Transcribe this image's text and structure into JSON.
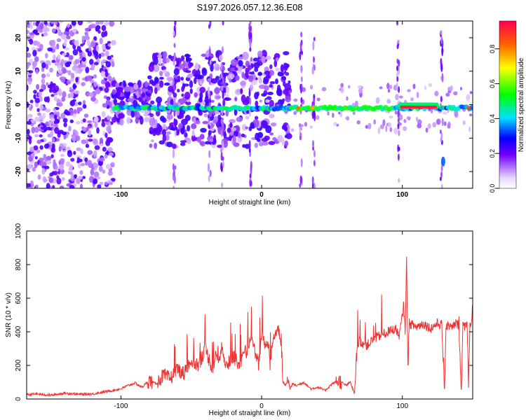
{
  "figure_title": "S197.2026.057.12.36.E08",
  "chart_data": [
    {
      "type": "heatmap",
      "title": "S197.2026.057.12.36.E08",
      "xlabel": "Height of straight line (km)",
      "ylabel": "Frequency (Hz)",
      "xlim": [
        -167,
        150
      ],
      "ylim": [
        -25,
        25
      ],
      "x_ticks": [
        -100,
        0,
        100
      ],
      "x_tick_labels": [
        "-100",
        "0",
        "100"
      ],
      "y_ticks": [
        -20,
        -10,
        0,
        10,
        20
      ],
      "y_tick_labels": [
        "-20",
        "-10",
        "0",
        "10",
        "20"
      ],
      "colorbar": {
        "label": "Normalized spectral amplitude",
        "range": [
          0,
          0.96
        ],
        "ticks": [
          0,
          0.2,
          0.4,
          0.6,
          0.8
        ],
        "tick_labels": [
          "0.0",
          "0.2",
          "0.4",
          "0.6",
          "0.8"
        ]
      },
      "features": [
        {
          "name": "broadband noise",
          "x_range": [
            -167,
            -105
          ],
          "freq_range": [
            -25,
            25
          ],
          "amplitude": 0.12
        },
        {
          "name": "scattered energy",
          "x_range": [
            -105,
            20
          ],
          "freq_range": [
            -12,
            18
          ],
          "amplitude": 0.2
        },
        {
          "name": "near-zero line",
          "x_range": [
            -105,
            150
          ],
          "freq": -1,
          "amplitude": 0.45
        },
        {
          "name": "strong zero line",
          "x_range": [
            97,
            126
          ],
          "freq": -1,
          "amplitude": 0.96
        },
        {
          "name": "vertical streaks",
          "x_positions": [
            -62,
            -37,
            -28,
            -8,
            28,
            37,
            97,
            128
          ],
          "amplitude": 0.12
        },
        {
          "name": "spot at -17 Hz",
          "x": 129,
          "freq": -17,
          "amplitude": 0.35
        }
      ]
    },
    {
      "type": "line",
      "xlabel": "Height of straight line (km)",
      "ylabel": "SNR (10 * v/v)",
      "xlim": [
        -167,
        150
      ],
      "ylim": [
        0,
        1000
      ],
      "x_ticks": [
        -100,
        0,
        100
      ],
      "x_tick_labels": [
        "-100",
        "0",
        "100"
      ],
      "y_ticks": [
        0,
        200,
        400,
        600,
        800,
        1000
      ],
      "y_tick_labels": [
        "0",
        "200",
        "400",
        "600",
        "800",
        "1000"
      ],
      "series": [
        {
          "name": "SNR",
          "color": "#ee3333",
          "x": [
            -167,
            -160,
            -150,
            -140,
            -130,
            -120,
            -110,
            -100,
            -95,
            -90,
            -85,
            -80,
            -75,
            -70,
            -65,
            -60,
            -55,
            -50,
            -45,
            -40,
            -35,
            -32,
            -30,
            -28,
            -25,
            -22,
            -20,
            -15,
            -12,
            -10,
            -8,
            -5,
            -2,
            0,
            2,
            5,
            6,
            8,
            10,
            12,
            14,
            15,
            17,
            19,
            20,
            22,
            25,
            30,
            35,
            40,
            45,
            50,
            55,
            60,
            63,
            66,
            67,
            68,
            70,
            75,
            80,
            85,
            90,
            95,
            98,
            100,
            101,
            102,
            103,
            104,
            105,
            110,
            115,
            120,
            125,
            128,
            130,
            131,
            133,
            135,
            138,
            140,
            142,
            143,
            145,
            146,
            147,
            148,
            149,
            150
          ],
          "y": [
            25,
            30,
            22,
            35,
            28,
            30,
            45,
            60,
            80,
            95,
            70,
            110,
            90,
            140,
            120,
            180,
            150,
            230,
            200,
            300,
            180,
            270,
            220,
            320,
            180,
            240,
            250,
            200,
            280,
            260,
            380,
            300,
            200,
            400,
            320,
            330,
            200,
            350,
            400,
            420,
            300,
            100,
            80,
            120,
            60,
            90,
            80,
            100,
            60,
            70,
            50,
            90,
            110,
            80,
            100,
            30,
            200,
            330,
            340,
            320,
            360,
            380,
            400,
            420,
            380,
            500,
            560,
            400,
            830,
            180,
            450,
            430,
            450,
            420,
            450,
            440,
            60,
            430,
            440,
            420,
            450,
            440,
            60,
            430,
            440,
            470,
            60,
            440,
            450,
            560
          ]
        }
      ]
    }
  ]
}
